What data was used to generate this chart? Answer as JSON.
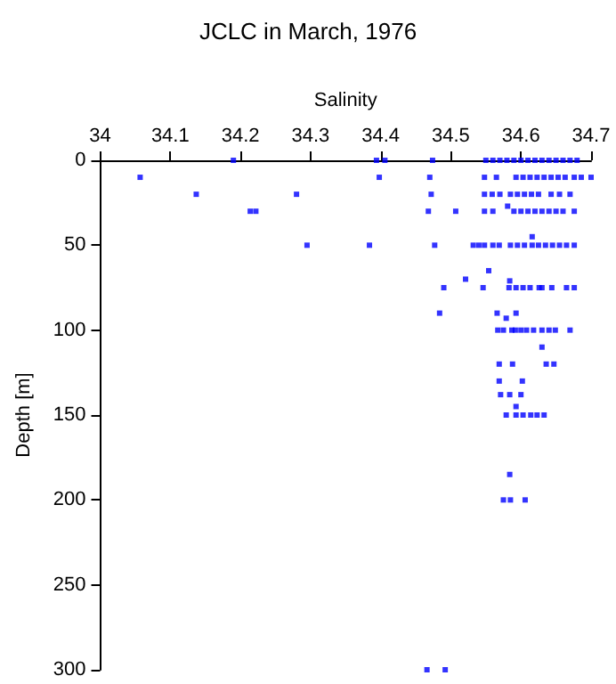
{
  "chart_data": {
    "type": "scatter",
    "title": "JCLC in March, 1976",
    "xlabel": "Salinity",
    "ylabel": "Depth [m]",
    "xlim": [
      34,
      34.7
    ],
    "xticks": [
      34,
      34.1,
      34.2,
      34.3,
      34.4,
      34.5,
      34.6,
      34.7
    ],
    "ylim": [
      300,
      0
    ],
    "yticks": [
      0,
      50,
      100,
      150,
      200,
      250,
      300
    ],
    "grid": false,
    "marker": "square",
    "series": [
      {
        "color": "#0000ff",
        "x": [
          34.19,
          34.394,
          34.406,
          34.474,
          34.55,
          34.56,
          34.57,
          34.58,
          34.59,
          34.6,
          34.61,
          34.62,
          34.63,
          34.64,
          34.65,
          34.66,
          34.67,
          34.68,
          34.057,
          34.398,
          34.47,
          34.548,
          34.565,
          34.593,
          34.603,
          34.613,
          34.623,
          34.633,
          34.643,
          34.653,
          34.663,
          34.676,
          34.686,
          34.7,
          34.137,
          34.28,
          34.472,
          34.548,
          34.559,
          34.57,
          34.585,
          34.595,
          34.605,
          34.615,
          34.625,
          34.643,
          34.655,
          34.67,
          34.214,
          34.222,
          34.468,
          34.507,
          34.548,
          34.56,
          34.581,
          34.59,
          34.6,
          34.61,
          34.62,
          34.63,
          34.64,
          34.65,
          34.66,
          34.676,
          34.295,
          34.384,
          34.477,
          34.532,
          34.54,
          34.548,
          34.56,
          34.569,
          34.585,
          34.595,
          34.605,
          34.616,
          34.625,
          34.635,
          34.645,
          34.655,
          34.665,
          34.676,
          34.616,
          34.554,
          34.521,
          34.584,
          34.49,
          34.546,
          34.583,
          34.593,
          34.603,
          34.613,
          34.626,
          34.63,
          34.644,
          34.665,
          34.676,
          34.484,
          34.566,
          34.593,
          34.579,
          34.567,
          34.575,
          34.587,
          34.592,
          34.6,
          34.608,
          34.618,
          34.63,
          34.64,
          34.649,
          34.67,
          34.63,
          34.569,
          34.588,
          34.636,
          34.647,
          34.569,
          34.602,
          34.571,
          34.584,
          34.6,
          34.593,
          34.579,
          34.593,
          34.603,
          34.614,
          34.623,
          34.633,
          34.584,
          34.575,
          34.585,
          34.606,
          34.466,
          34.492
        ],
        "values": [
          0,
          0,
          0,
          0,
          0,
          0,
          0,
          0,
          0,
          0,
          0,
          0,
          0,
          0,
          0,
          0,
          0,
          0,
          10,
          10,
          10,
          10,
          10,
          10,
          10,
          10,
          10,
          10,
          10,
          10,
          10,
          10,
          10,
          10,
          20,
          20,
          20,
          20,
          20,
          20,
          20,
          20,
          20,
          20,
          20,
          20,
          20,
          20,
          30,
          30,
          30,
          30,
          30,
          30,
          27,
          30,
          30,
          30,
          30,
          30,
          30,
          30,
          30,
          30,
          50,
          50,
          50,
          50,
          50,
          50,
          50,
          50,
          50,
          50,
          50,
          50,
          50,
          50,
          50,
          50,
          50,
          50,
          45,
          65,
          70,
          71,
          75,
          75,
          75,
          75,
          75,
          75,
          75,
          75,
          75,
          75,
          75,
          90,
          90,
          90,
          93,
          100,
          100,
          100,
          100,
          100,
          100,
          100,
          100,
          100,
          100,
          100,
          110,
          120,
          120,
          120,
          120,
          130,
          130,
          138,
          138,
          138,
          145,
          150,
          150,
          150,
          150,
          150,
          150,
          185,
          200,
          200,
          200,
          300,
          300
        ]
      }
    ]
  }
}
